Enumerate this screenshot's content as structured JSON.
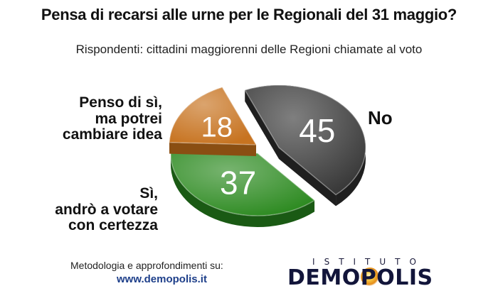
{
  "title": "Pensa di recarsi alle urne per le Regionali del 31 maggio?",
  "subtitle": "Rispondenti: cittadini maggiorenni delle Regioni chiamate al voto",
  "chart_data": {
    "type": "pie",
    "title": "Pensa di recarsi alle urne per le Regionali del 31 maggio?",
    "subtitle": "Rispondenti: cittadini maggiorenni delle Regioni chiamate al voto",
    "slices": [
      {
        "label": "No",
        "value": 45,
        "color": "#3a3a3a"
      },
      {
        "label": "Sì, andrò a votare con certezza",
        "value": 37,
        "color": "#2e8b22"
      },
      {
        "label": "Penso di sì, ma potrei cambiare idea",
        "value": 18,
        "color": "#c77320"
      }
    ]
  },
  "labels": {
    "no": "No",
    "yes": [
      "Sì,",
      "andrò a votare",
      "con certezza"
    ],
    "maybe": [
      "Penso di sì,",
      "ma potrei",
      "cambiare idea"
    ]
  },
  "footer": {
    "note": "Metodologia e approfondimenti su:",
    "link": "www.demopolis.it"
  },
  "logo": {
    "top": "ISTITUTO",
    "main": "DEMOPOLIS"
  }
}
